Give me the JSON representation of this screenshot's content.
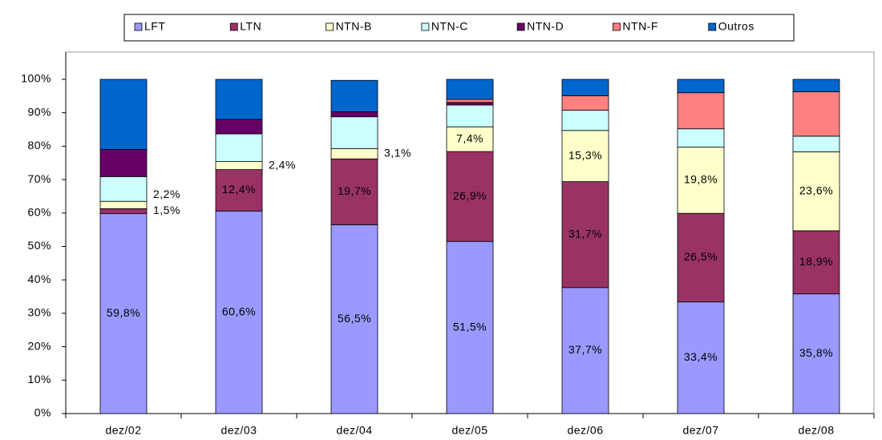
{
  "chart_data": {
    "type": "stacked-bar",
    "categories": [
      "dez/02",
      "dez/03",
      "dez/04",
      "dez/05",
      "dez/06",
      "dez/07",
      "dez/08"
    ],
    "series": [
      {
        "name": "LFT",
        "color": "#9999ff",
        "values": [
          59.8,
          60.6,
          56.5,
          51.5,
          37.7,
          33.4,
          35.8
        ],
        "value_labels": [
          "59,8%",
          "60,6%",
          "56,5%",
          "51,5%",
          "37,7%",
          "33,4%",
          "35,8%"
        ]
      },
      {
        "name": "LTN",
        "color": "#993366",
        "values": [
          1.5,
          12.4,
          19.7,
          26.9,
          31.7,
          26.5,
          18.9
        ],
        "value_labels": [
          "1,5%",
          "12,4%",
          "19,7%",
          "26,9%",
          "31,7%",
          "26,5%",
          "18,9%"
        ]
      },
      {
        "name": "NTN-B",
        "color": "#ffffcc",
        "values": [
          2.2,
          2.4,
          3.1,
          7.4,
          15.3,
          19.8,
          23.6
        ],
        "value_labels": [
          "2,2%",
          "2,4%",
          "3,1%",
          "7,4%",
          "15,3%",
          "19,8%",
          "23,6%"
        ]
      },
      {
        "name": "NTN-C",
        "color": "#ccffff",
        "values": [
          7.4,
          8.3,
          9.5,
          6.5,
          6.1,
          5.5,
          4.7
        ]
      },
      {
        "name": "NTN-D",
        "color": "#660066",
        "values": [
          8.1,
          4.3,
          1.5,
          0.8,
          0,
          0,
          0
        ]
      },
      {
        "name": "NTN-F",
        "color": "#ff8080",
        "values": [
          0,
          0,
          0,
          0.9,
          4.3,
          10.8,
          13.3
        ]
      },
      {
        "name": "Outros",
        "color": "#0066cc",
        "values": [
          21.0,
          12.0,
          9.4,
          6.0,
          4.9,
          4.0,
          3.7
        ]
      }
    ],
    "ylim": [
      0,
      100
    ],
    "yticks": [
      {
        "value": 0,
        "label": "0%"
      },
      {
        "value": 10,
        "label": "10%"
      },
      {
        "value": 20,
        "label": "20%"
      },
      {
        "value": 30,
        "label": "30%"
      },
      {
        "value": 40,
        "label": "40%"
      },
      {
        "value": 50,
        "label": "50%"
      },
      {
        "value": 60,
        "label": "60%"
      },
      {
        "value": 70,
        "label": "70%"
      },
      {
        "value": 80,
        "label": "80%"
      },
      {
        "value": 90,
        "label": "90%"
      },
      {
        "value": 100,
        "label": "100%"
      }
    ],
    "legend": "top"
  }
}
